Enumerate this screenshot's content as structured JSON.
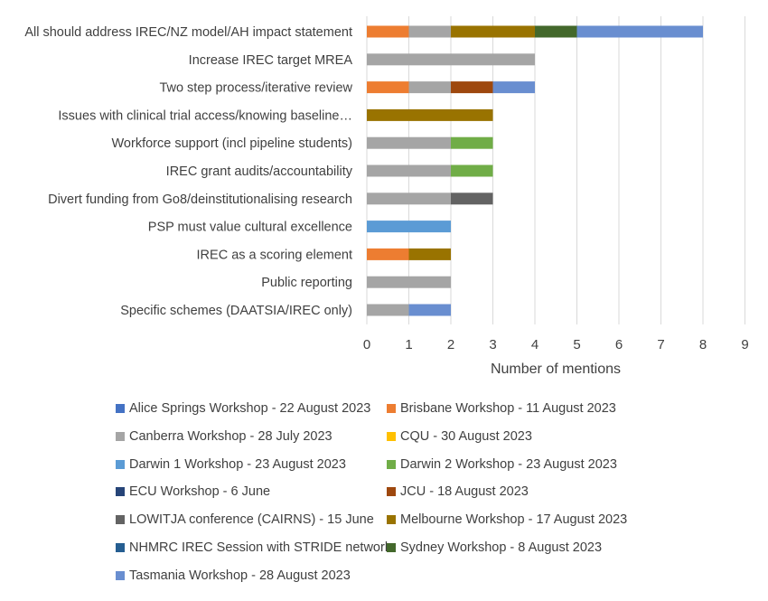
{
  "chart_data": {
    "type": "bar",
    "orientation": "horizontal",
    "stacked": true,
    "title": "",
    "xlabel": "Number of mentions",
    "ylabel": "",
    "xlim": [
      0,
      9
    ],
    "xticks": [
      0,
      1,
      2,
      3,
      4,
      5,
      6,
      7,
      8,
      9
    ],
    "grid": true,
    "legend_position": "bottom",
    "categories": [
      "All should address IREC/NZ model/AH impact statement",
      "Increase IREC target MREA",
      "Two step process/iterative review",
      "Issues with clinical trial access/knowing baseline…",
      "Workforce support (incl pipeline students)",
      "IREC grant audits/accountability",
      "Divert funding from Go8/deinstitutionalising research",
      "PSP must value cultural excellence",
      "IREC as a scoring element",
      "Public reporting",
      "Specific schemes (DAATSIA/IREC only)"
    ],
    "series": [
      {
        "name": "Alice Springs Workshop - 22 August 2023",
        "color": "#4472c4",
        "values": [
          0,
          0,
          0,
          0,
          0,
          0,
          0,
          0,
          0,
          0,
          0
        ]
      },
      {
        "name": "Brisbane Workshop - 11 August 2023",
        "color": "#ed7d31",
        "values": [
          1,
          0,
          1,
          0,
          0,
          0,
          0,
          0,
          1,
          0,
          0
        ]
      },
      {
        "name": "Canberra Workshop - 28 July 2023",
        "color": "#a5a5a5",
        "values": [
          1,
          4,
          1,
          0,
          2,
          2,
          2,
          0,
          0,
          2,
          1
        ]
      },
      {
        "name": "CQU - 30 August 2023",
        "color": "#ffc000",
        "values": [
          0,
          0,
          0,
          0,
          0,
          0,
          0,
          0,
          0,
          0,
          0
        ]
      },
      {
        "name": "Darwin 1 Workshop - 23 August 2023",
        "color": "#5b9bd5",
        "values": [
          0,
          0,
          0,
          0,
          0,
          0,
          0,
          2,
          0,
          0,
          0
        ]
      },
      {
        "name": "Darwin 2 Workshop - 23 August 2023",
        "color": "#70ad47",
        "values": [
          0,
          0,
          0,
          0,
          1,
          1,
          0,
          0,
          0,
          0,
          0
        ]
      },
      {
        "name": "ECU Workshop - 6 June",
        "color": "#264478",
        "values": [
          0,
          0,
          0,
          0,
          0,
          0,
          0,
          0,
          0,
          0,
          0
        ]
      },
      {
        "name": "JCU - 18 August 2023",
        "color": "#9e480e",
        "values": [
          0,
          0,
          1,
          0,
          0,
          0,
          0,
          0,
          0,
          0,
          0
        ]
      },
      {
        "name": "LOWITJA conference (CAIRNS) - 15 June",
        "color": "#636363",
        "values": [
          0,
          0,
          0,
          0,
          0,
          0,
          1,
          0,
          0,
          0,
          0
        ]
      },
      {
        "name": "Melbourne Workshop - 17 August 2023",
        "color": "#997300",
        "values": [
          2,
          0,
          0,
          3,
          0,
          0,
          0,
          0,
          1,
          0,
          0
        ]
      },
      {
        "name": "NHMRC IREC Session with STRIDE network",
        "color": "#255e91",
        "values": [
          0,
          0,
          0,
          0,
          0,
          0,
          0,
          0,
          0,
          0,
          0
        ]
      },
      {
        "name": "Sydney Workshop - 8 August 2023",
        "color": "#43682b",
        "values": [
          1,
          0,
          0,
          0,
          0,
          0,
          0,
          0,
          0,
          0,
          0
        ]
      },
      {
        "name": "Tasmania Workshop - 28 August 2023",
        "color": "#698ed0",
        "values": [
          3,
          0,
          1,
          0,
          0,
          0,
          0,
          0,
          0,
          0,
          1
        ]
      }
    ]
  },
  "colors": {
    "text": "#404040",
    "gridline": "#d9d9d9",
    "background": "#ffffff"
  }
}
